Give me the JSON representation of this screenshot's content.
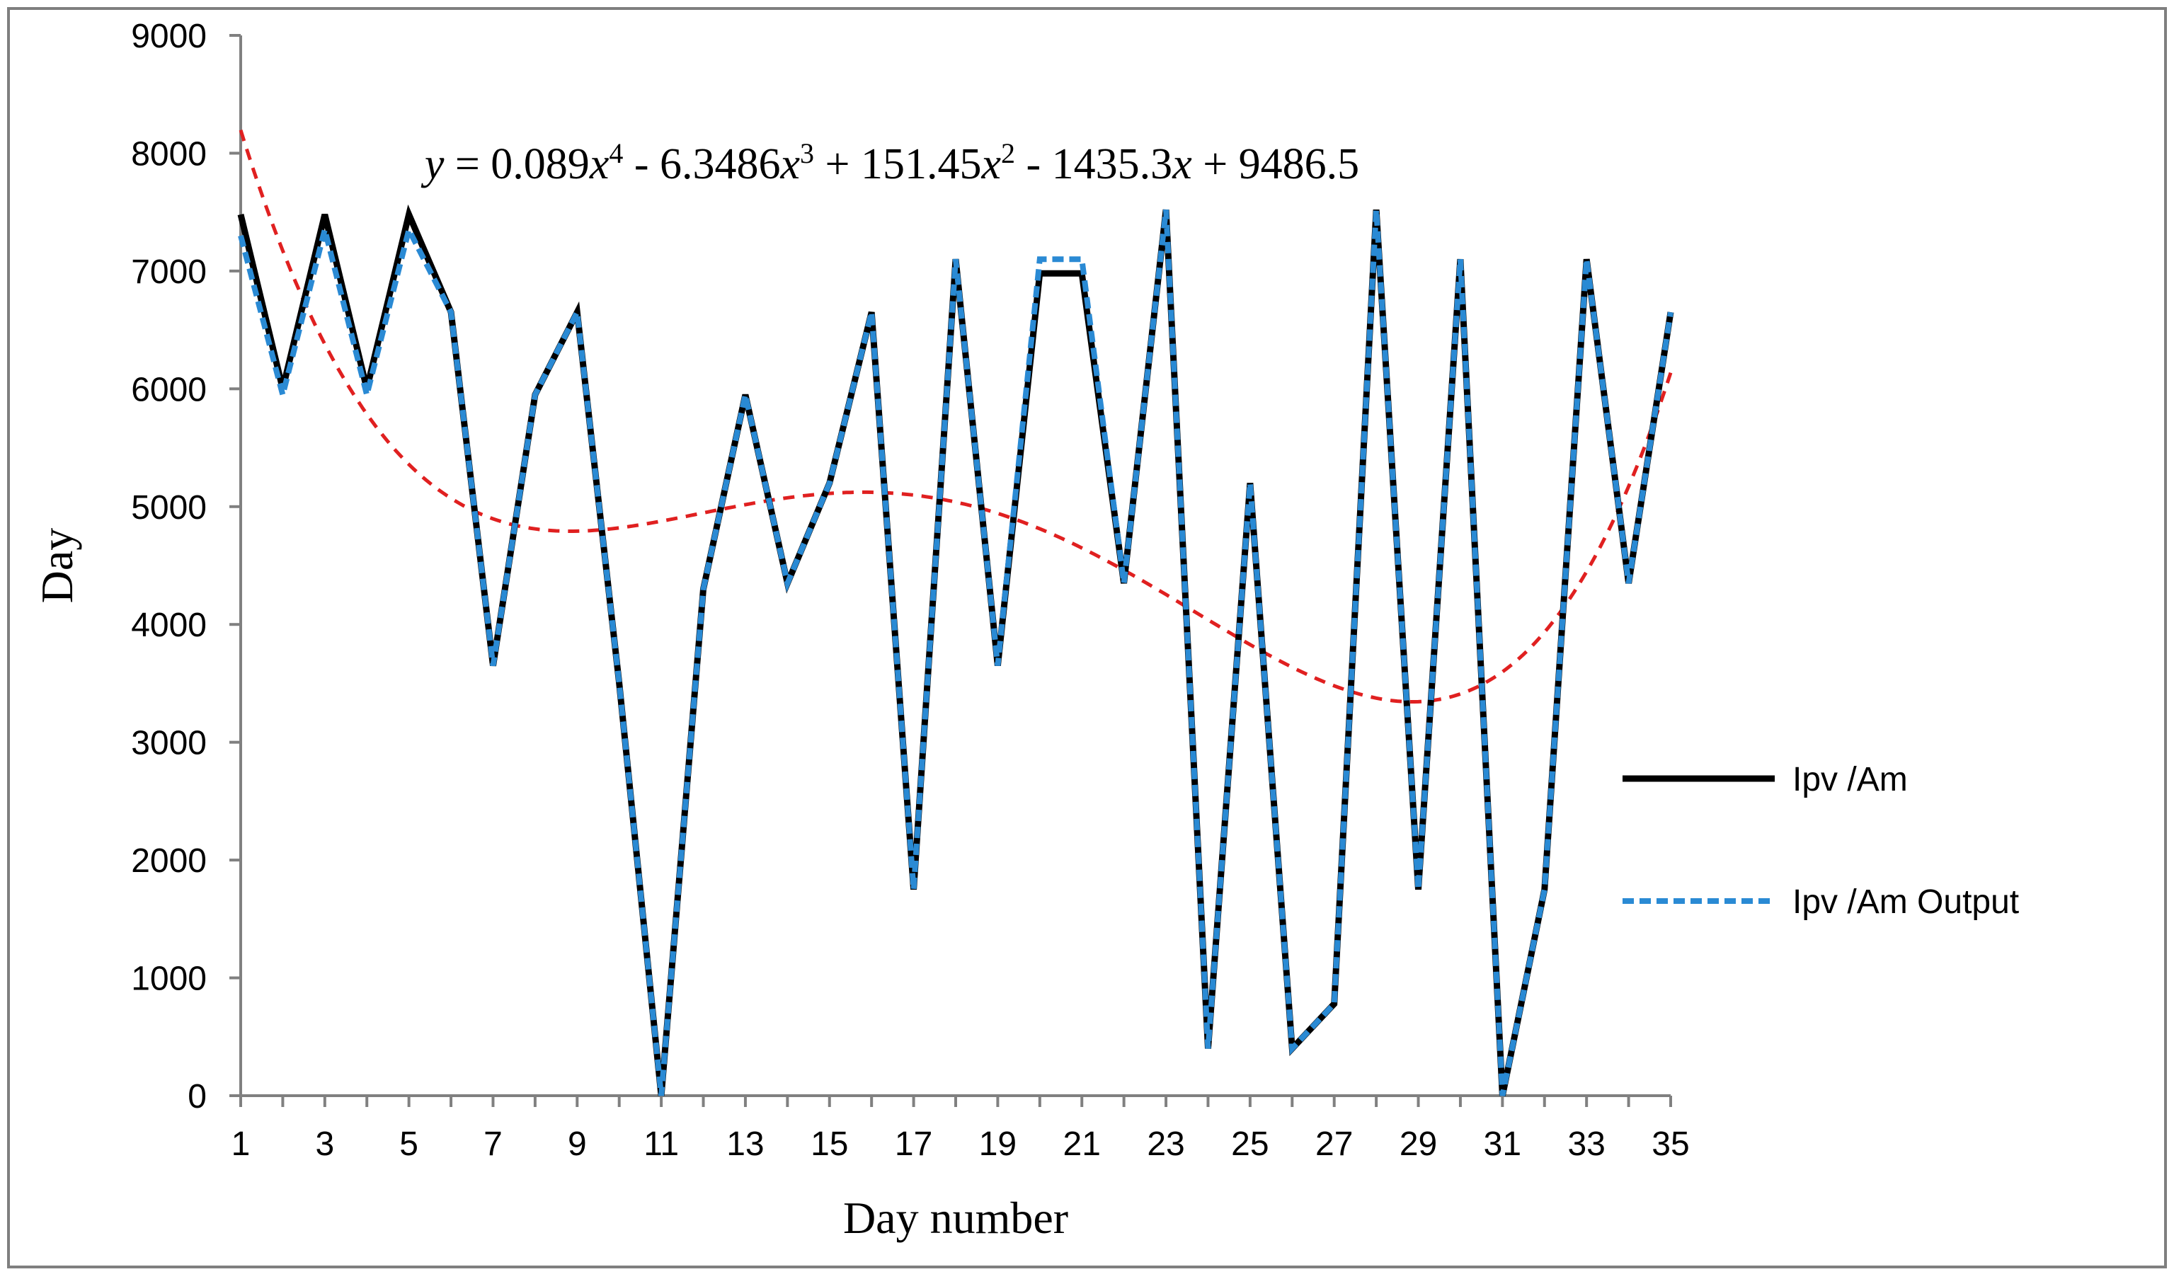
{
  "chart_data": {
    "type": "line",
    "title": "",
    "xlabel": "Day number",
    "ylabel": "Day",
    "xlim": [
      1,
      35
    ],
    "ylim": [
      0,
      9000
    ],
    "x_ticks": [
      1,
      3,
      5,
      7,
      9,
      11,
      13,
      15,
      17,
      19,
      21,
      23,
      25,
      27,
      29,
      31,
      33,
      35
    ],
    "y_ticks": [
      0,
      1000,
      2000,
      3000,
      4000,
      5000,
      6000,
      7000,
      8000,
      9000
    ],
    "grid": false,
    "legend_position": "right",
    "x": [
      1,
      2,
      3,
      4,
      5,
      6,
      7,
      8,
      9,
      10,
      11,
      12,
      13,
      14,
      15,
      16,
      17,
      18,
      19,
      20,
      21,
      22,
      23,
      24,
      25,
      26,
      27,
      28,
      29,
      30,
      31,
      32,
      33,
      34,
      35
    ],
    "series": [
      {
        "name": "Ipv /Am",
        "style": "solid",
        "color": "#000000",
        "values": [
          7480,
          6000,
          7480,
          6000,
          7480,
          6650,
          3650,
          5950,
          6650,
          3500,
          0,
          4300,
          5950,
          4350,
          5200,
          6650,
          1750,
          7100,
          3650,
          6980,
          6980,
          4350,
          7520,
          400,
          5200,
          400,
          780,
          7520,
          1750,
          7100,
          0,
          1750,
          7100,
          4350,
          6650
        ]
      },
      {
        "name": "Ipv /Am Output",
        "style": "dashed",
        "color": "#2a8ad4",
        "values": [
          7300,
          5950,
          7350,
          5950,
          7350,
          6650,
          3650,
          5950,
          6650,
          3500,
          0,
          4300,
          5950,
          4350,
          5200,
          6650,
          1750,
          7100,
          3650,
          7100,
          7100,
          4350,
          7520,
          400,
          5200,
          400,
          780,
          7520,
          1750,
          7100,
          0,
          1750,
          7100,
          4350,
          6650
        ]
      }
    ],
    "trendline": {
      "type": "polynomial",
      "order": 4,
      "color": "#e02020",
      "style": "dashed",
      "coefficients": [
        0.089,
        -6.3486,
        151.45,
        -1435.3,
        9486.5
      ],
      "equation_parts": [
        {
          "t": "y",
          "i": true
        },
        {
          "t": " = 0.089"
        },
        {
          "t": "x",
          "i": true
        },
        {
          "t": "4",
          "sup": true
        },
        {
          "t": " - 6.3486"
        },
        {
          "t": "x",
          "i": true
        },
        {
          "t": "3",
          "sup": true
        },
        {
          "t": " + 151.45"
        },
        {
          "t": "x",
          "i": true
        },
        {
          "t": "2",
          "sup": true
        },
        {
          "t": " - 1435.3"
        },
        {
          "t": "x",
          "i": true
        },
        {
          "t": " + 9486.5"
        }
      ]
    }
  }
}
